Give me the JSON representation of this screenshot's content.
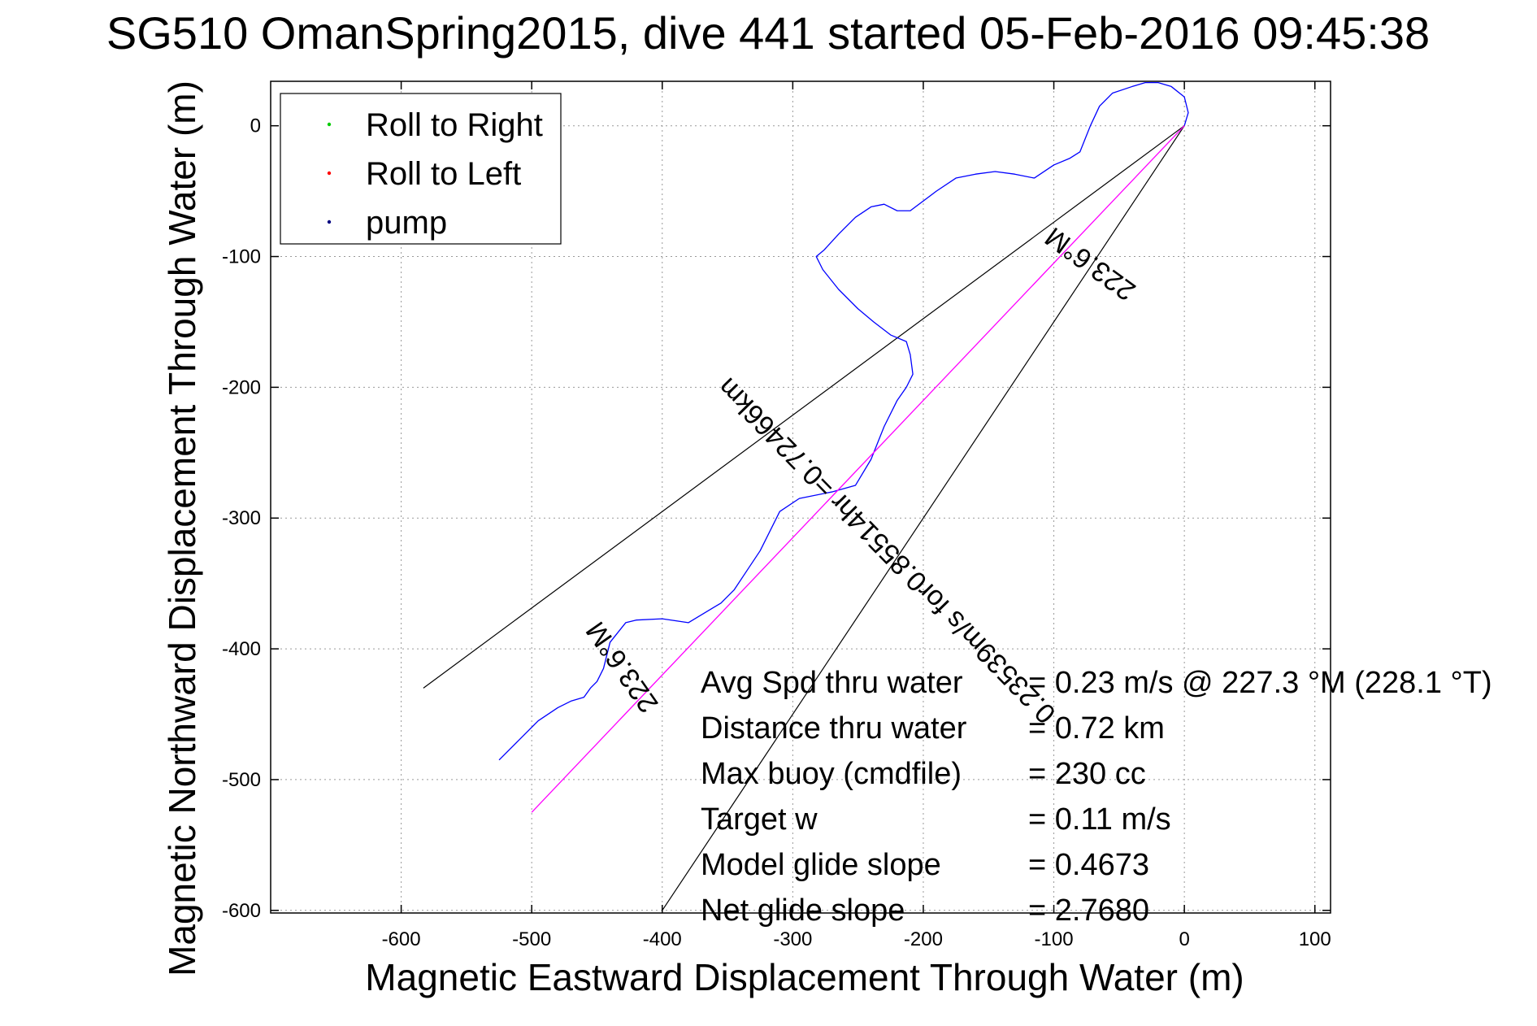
{
  "chart_data": {
    "type": "line",
    "title": "SG510 OmanSpring2015, dive 441 started 05-Feb-2016 09:45:38",
    "xlabel": "Magnetic Eastward Displacement Through Water (m)",
    "ylabel": "Magnetic Northward Displacement Through Water (m)",
    "xlim": [
      -700,
      112
    ],
    "ylim": [
      -602,
      34
    ],
    "grid": "on",
    "legend_placement": "top-left",
    "xticks": [
      -600,
      -500,
      -400,
      -300,
      -200,
      -100,
      0,
      100
    ],
    "yticks": [
      0,
      -100,
      -200,
      -300,
      -400,
      -500,
      -600
    ],
    "xtick_labels": [
      "-600",
      "-500",
      "-400",
      "-300",
      "-200",
      "-100",
      "0",
      "100"
    ],
    "ytick_labels": [
      "0",
      "-100",
      "-200",
      "-300",
      "-400",
      "-500",
      "-600"
    ],
    "legend": [
      {
        "label": "Roll to Right",
        "color": "#00cc00"
      },
      {
        "label": "Roll to Left",
        "color": "#ff0000"
      },
      {
        "label": "pump",
        "color": "#000080"
      }
    ],
    "series": [
      {
        "color": "#0000ff",
        "x": [
          0,
          3,
          0,
          -10,
          -20,
          -30,
          -40,
          -55,
          -65,
          -72,
          -76,
          -80,
          -88,
          -100,
          -115,
          -130,
          -145,
          -160,
          -175,
          -190,
          -210,
          -220,
          -230,
          -240,
          -252,
          -265,
          -276,
          -282,
          -277,
          -265,
          -250,
          -238,
          -225,
          -213,
          -210,
          -208,
          -213,
          -220,
          -230,
          -240,
          -252,
          -270,
          -295,
          -310,
          -325,
          -335,
          -345,
          -352,
          -355,
          -360,
          -380,
          -400,
          -420,
          -428,
          -440,
          -445,
          -450,
          -455,
          -460,
          -470,
          -480,
          -495,
          -510,
          -525
        ],
        "y": [
          0,
          10,
          22,
          30,
          33,
          33,
          30,
          25,
          15,
          0,
          -10,
          -20,
          -25,
          -30,
          -40,
          -37,
          -35,
          -37,
          -40,
          -50,
          -65,
          -65,
          -60,
          -62,
          -70,
          -83,
          -95,
          -100,
          -110,
          -125,
          -140,
          -150,
          -160,
          -165,
          -175,
          -190,
          -200,
          -210,
          -230,
          -255,
          -275,
          -280,
          -285,
          -295,
          -325,
          -340,
          -355,
          -362,
          -365,
          -368,
          -380,
          -377,
          -378,
          -380,
          -395,
          -415,
          -425,
          -430,
          -437,
          -440,
          -445,
          -455,
          -470,
          -485
        ]
      },
      {
        "color": "#ff00ff",
        "x": [
          0,
          -500
        ],
        "y": [
          0,
          -525
        ]
      }
    ],
    "reference_lines": [
      {
        "color": "#000000",
        "x": [
          0,
          -583
        ],
        "y": [
          0,
          -430
        ]
      },
      {
        "color": "#000000",
        "x": [
          0,
          -400
        ],
        "y": [
          0,
          -600
        ]
      }
    ],
    "annotations": [
      {
        "text": "0.23539m/s for0.85514hr =0.72466km",
        "x": -223,
        "y": -320,
        "rotation": 225.7
      },
      {
        "text": "223.6°M",
        "x": -68,
        "y": -100,
        "rotation": 216
      },
      {
        "text": "223.6°M",
        "x": -425,
        "y": -410,
        "rotation": 235
      }
    ],
    "stats": [
      {
        "label": "Avg Spd thru water",
        "value": "=  0.23 m/s @ 227.3  °M (228.1  °T)"
      },
      {
        "label": "Distance thru water",
        "value": "=  0.72 km"
      },
      {
        "label": "Max buoy (cmdfile)",
        "value": "= 230 cc"
      },
      {
        "label": "Target w",
        "value": "= 0.11 m/s"
      },
      {
        "label": "Model glide slope",
        "value": "= 0.4673"
      },
      {
        "label": "Net glide slope",
        "value": "= 2.7680"
      }
    ]
  }
}
